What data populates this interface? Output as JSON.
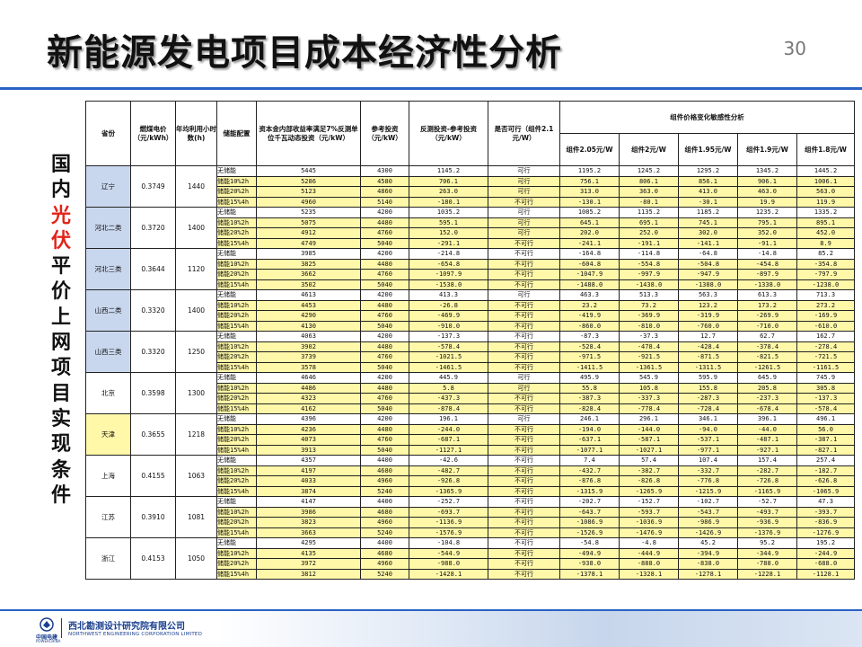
{
  "header": {
    "title": "新能源发电项目成本经济性分析",
    "page_number": "30"
  },
  "side_title": {
    "chars": [
      "国",
      "内",
      "光",
      "伏",
      "平",
      "价",
      "上",
      "网",
      "项",
      "目",
      "实",
      "现",
      "条",
      "件"
    ],
    "highlight_indices": [
      2,
      3
    ]
  },
  "table": {
    "headers": {
      "province": "省份",
      "price": "燃煤电价（元/kWh）",
      "hours": "年均利用小时数(h)",
      "config": "储能配置",
      "cost": "资本金内部收益率满足7%反测单位千瓦动态投资（元/kW）",
      "ref": "参考投资（元/kW）",
      "diff": "反测投资-参考投资（元/kW）",
      "ok": "是否可行（组件2.1元/W）",
      "sens": "组件价格变化敏感性分析",
      "sens_cols": [
        "组件2.05元/W",
        "组件2元/W",
        "组件1.95元/W",
        "组件1.9元/W",
        "组件1.8元/W"
      ]
    },
    "groups": [
      {
        "province": "辽宁",
        "price": "0.3749",
        "hours": "1440",
        "color": "blue",
        "rows": [
          [
            "无储能",
            "5445",
            "4300",
            "1145.2",
            "可行",
            "1195.2",
            "1245.2",
            "1295.2",
            "1345.2",
            "1445.2"
          ],
          [
            "储能10%2h",
            "5286",
            "4580",
            "706.1",
            "可行",
            "756.1",
            "806.1",
            "856.1",
            "906.1",
            "1006.1"
          ],
          [
            "储能20%2h",
            "5123",
            "4860",
            "263.0",
            "可行",
            "313.0",
            "363.0",
            "413.0",
            "463.0",
            "563.0"
          ],
          [
            "储能15%4h",
            "4960",
            "5140",
            "-180.1",
            "不可行",
            "-130.1",
            "-80.1",
            "-30.1",
            "19.9",
            "119.9"
          ]
        ]
      },
      {
        "province": "河北二类",
        "price": "0.3720",
        "hours": "1400",
        "color": "blue",
        "rows": [
          [
            "无储能",
            "5235",
            "4200",
            "1035.2",
            "可行",
            "1085.2",
            "1135.2",
            "1185.2",
            "1235.2",
            "1335.2"
          ],
          [
            "储能10%2h",
            "5075",
            "4480",
            "595.1",
            "可行",
            "645.1",
            "695.1",
            "745.1",
            "795.1",
            "895.1"
          ],
          [
            "储能20%2h",
            "4912",
            "4760",
            "152.0",
            "可行",
            "202.0",
            "252.0",
            "302.0",
            "352.0",
            "452.0"
          ],
          [
            "储能15%4h",
            "4749",
            "5040",
            "-291.1",
            "不可行",
            "-241.1",
            "-191.1",
            "-141.1",
            "-91.1",
            "8.9"
          ]
        ]
      },
      {
        "province": "河北三类",
        "price": "0.3644",
        "hours": "1120",
        "color": "blue",
        "rows": [
          [
            "无储能",
            "3985",
            "4200",
            "-214.8",
            "不可行",
            "-164.8",
            "-114.8",
            "-64.8",
            "-14.8",
            "85.2"
          ],
          [
            "储能10%2h",
            "3825",
            "4480",
            "-654.8",
            "不可行",
            "-604.8",
            "-554.8",
            "-504.8",
            "-454.8",
            "-354.8"
          ],
          [
            "储能20%2h",
            "3662",
            "4760",
            "-1097.9",
            "不可行",
            "-1047.9",
            "-997.9",
            "-947.9",
            "-897.9",
            "-797.9"
          ],
          [
            "储能15%4h",
            "3502",
            "5040",
            "-1538.0",
            "不可行",
            "-1488.0",
            "-1438.0",
            "-1388.0",
            "-1338.0",
            "-1238.0"
          ]
        ]
      },
      {
        "province": "山西二类",
        "price": "0.3320",
        "hours": "1400",
        "color": "blue",
        "rows": [
          [
            "无储能",
            "4613",
            "4200",
            "413.3",
            "可行",
            "463.3",
            "513.3",
            "563.3",
            "613.3",
            "713.3"
          ],
          [
            "储能10%2h",
            "4453",
            "4480",
            "-26.8",
            "不可行",
            "23.2",
            "73.2",
            "123.2",
            "173.2",
            "273.2"
          ],
          [
            "储能20%2h",
            "4290",
            "4760",
            "-469.9",
            "不可行",
            "-419.9",
            "-369.9",
            "-319.9",
            "-269.9",
            "-169.9"
          ],
          [
            "储能15%4h",
            "4130",
            "5040",
            "-910.0",
            "不可行",
            "-860.0",
            "-810.0",
            "-760.0",
            "-710.0",
            "-610.0"
          ]
        ]
      },
      {
        "province": "山西三类",
        "price": "0.3320",
        "hours": "1250",
        "color": "blue",
        "rows": [
          [
            "无储能",
            "4063",
            "4200",
            "-137.3",
            "不可行",
            "-87.3",
            "-37.3",
            "12.7",
            "62.7",
            "162.7"
          ],
          [
            "储能10%2h",
            "3902",
            "4480",
            "-578.4",
            "不可行",
            "-528.4",
            "-478.4",
            "-428.4",
            "-378.4",
            "-278.4"
          ],
          [
            "储能20%2h",
            "3739",
            "4760",
            "-1021.5",
            "不可行",
            "-971.5",
            "-921.5",
            "-871.5",
            "-821.5",
            "-721.5"
          ],
          [
            "储能15%4h",
            "3578",
            "5040",
            "-1461.5",
            "不可行",
            "-1411.5",
            "-1361.5",
            "-1311.5",
            "-1261.5",
            "-1161.5"
          ]
        ]
      },
      {
        "province": "北京",
        "price": "0.3598",
        "hours": "1300",
        "color": "white",
        "rows": [
          [
            "无储能",
            "4646",
            "4200",
            "445.9",
            "可行",
            "495.9",
            "545.9",
            "595.9",
            "645.9",
            "745.9"
          ],
          [
            "储能10%2h",
            "4486",
            "4480",
            "5.8",
            "可行",
            "55.8",
            "105.8",
            "155.8",
            "205.8",
            "305.8"
          ],
          [
            "储能20%2h",
            "4323",
            "4760",
            "-437.3",
            "不可行",
            "-387.3",
            "-337.3",
            "-287.3",
            "-237.3",
            "-137.3"
          ],
          [
            "储能15%4h",
            "4162",
            "5040",
            "-878.4",
            "不可行",
            "-828.4",
            "-778.4",
            "-728.4",
            "-678.4",
            "-578.4"
          ]
        ]
      },
      {
        "province": "天津",
        "price": "0.3655",
        "hours": "1218",
        "color": "yellow",
        "rows": [
          [
            "无储能",
            "4396",
            "4200",
            "196.1",
            "可行",
            "246.1",
            "296.1",
            "346.1",
            "396.1",
            "496.1"
          ],
          [
            "储能10%2h",
            "4236",
            "4480",
            "-244.0",
            "不可行",
            "-194.0",
            "-144.0",
            "-94.0",
            "-44.0",
            "56.0"
          ],
          [
            "储能20%2h",
            "4073",
            "4760",
            "-687.1",
            "不可行",
            "-637.1",
            "-587.1",
            "-537.1",
            "-487.1",
            "-387.1"
          ],
          [
            "储能15%4h",
            "3913",
            "5040",
            "-1127.1",
            "不可行",
            "-1077.1",
            "-1027.1",
            "-977.1",
            "-927.1",
            "-827.1"
          ]
        ]
      },
      {
        "province": "上海",
        "price": "0.4155",
        "hours": "1063",
        "color": "white",
        "rows": [
          [
            "无储能",
            "4357",
            "4400",
            "-42.6",
            "不可行",
            "7.4",
            "57.4",
            "107.4",
            "157.4",
            "257.4"
          ],
          [
            "储能10%2h",
            "4197",
            "4680",
            "-482.7",
            "不可行",
            "-432.7",
            "-382.7",
            "-332.7",
            "-282.7",
            "-182.7"
          ],
          [
            "储能20%2h",
            "4033",
            "4960",
            "-926.8",
            "不可行",
            "-876.8",
            "-826.8",
            "-776.8",
            "-726.8",
            "-626.8"
          ],
          [
            "储能15%4h",
            "3874",
            "5240",
            "-1365.9",
            "不可行",
            "-1315.9",
            "-1265.9",
            "-1215.9",
            "-1165.9",
            "-1065.9"
          ]
        ]
      },
      {
        "province": "江苏",
        "price": "0.3910",
        "hours": "1081",
        "color": "white",
        "rows": [
          [
            "无储能",
            "4147",
            "4400",
            "-252.7",
            "不可行",
            "-202.7",
            "-152.7",
            "-102.7",
            "-52.7",
            "47.3"
          ],
          [
            "储能10%2h",
            "3986",
            "4680",
            "-693.7",
            "不可行",
            "-643.7",
            "-593.7",
            "-543.7",
            "-493.7",
            "-393.7"
          ],
          [
            "储能20%2h",
            "3823",
            "4960",
            "-1136.9",
            "不可行",
            "-1086.9",
            "-1036.9",
            "-986.9",
            "-936.9",
            "-836.9"
          ],
          [
            "储能15%4h",
            "3663",
            "5240",
            "-1576.9",
            "不可行",
            "-1526.9",
            "-1476.9",
            "-1426.9",
            "-1376.9",
            "-1276.9"
          ]
        ]
      },
      {
        "province": "浙江",
        "price": "0.4153",
        "hours": "1050",
        "color": "white",
        "rows": [
          [
            "无储能",
            "4295",
            "4400",
            "-104.8",
            "不可行",
            "-54.8",
            "-4.8",
            "45.2",
            "95.2",
            "195.2"
          ],
          [
            "储能10%2h",
            "4135",
            "4680",
            "-544.9",
            "不可行",
            "-494.9",
            "-444.9",
            "-394.9",
            "-344.9",
            "-244.9"
          ],
          [
            "储能20%2h",
            "3972",
            "4960",
            "-988.0",
            "不可行",
            "-938.0",
            "-888.0",
            "-838.0",
            "-788.0",
            "-688.0"
          ],
          [
            "储能15%4h",
            "3812",
            "5240",
            "-1428.1",
            "不可行",
            "-1378.1",
            "-1328.1",
            "-1278.1",
            "-1228.1",
            "-1128.1"
          ]
        ]
      }
    ]
  },
  "footer": {
    "logo_cn": "中国电建",
    "logo_en": "POWERCHINA",
    "company_cn": "西北勘测设计研究院有限公司",
    "company_en": "NORTHWEST ENGINEERING CORPORATION LIMITED"
  },
  "colors": {
    "accent": "#2a62c4",
    "highlight": "#e2231a",
    "blue_cell": "#c9d7ee",
    "yellow_cell": "#fff8a8"
  }
}
